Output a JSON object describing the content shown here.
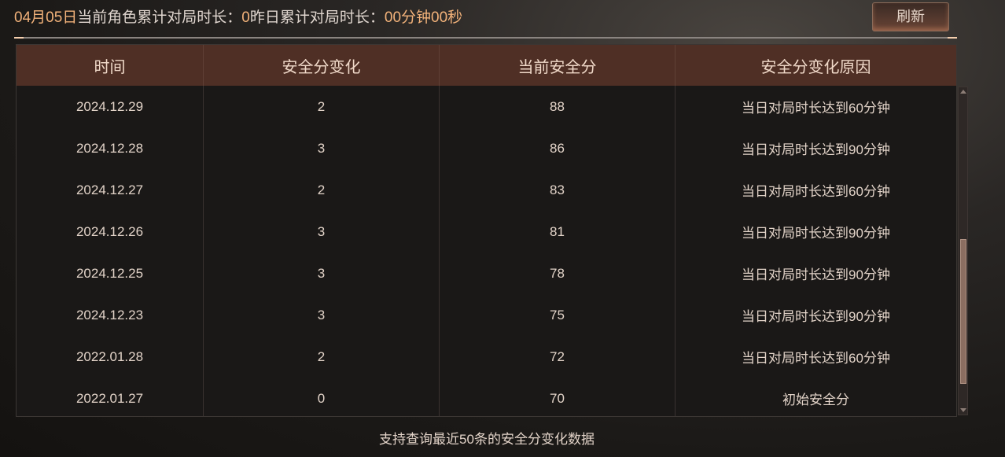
{
  "header": {
    "date": "04月05日",
    "current_label": "当前角色累计对局时长：",
    "current_value": "0",
    "yesterday_label": "昨日累计对局时长：",
    "yesterday_value": "00分钟00秒",
    "refresh_label": "刷新"
  },
  "table": {
    "columns": [
      "时间",
      "安全分变化",
      "当前安全分",
      "安全分变化原因"
    ],
    "rows": [
      [
        "2024.12.29",
        "2",
        "88",
        "当日对局时长达到60分钟"
      ],
      [
        "2024.12.28",
        "3",
        "86",
        "当日对局时长达到90分钟"
      ],
      [
        "2024.12.27",
        "2",
        "83",
        "当日对局时长达到60分钟"
      ],
      [
        "2024.12.26",
        "3",
        "81",
        "当日对局时长达到90分钟"
      ],
      [
        "2024.12.25",
        "3",
        "78",
        "当日对局时长达到90分钟"
      ],
      [
        "2024.12.23",
        "3",
        "75",
        "当日对局时长达到90分钟"
      ],
      [
        "2022.01.28",
        "2",
        "72",
        "当日对局时长达到60分钟"
      ],
      [
        "2022.01.27",
        "0",
        "70",
        "初始安全分"
      ]
    ]
  },
  "footer": "支持查询最近50条的安全分变化数据",
  "colors": {
    "accent": "#f2b27a",
    "header_bg": "#4f2f25"
  }
}
